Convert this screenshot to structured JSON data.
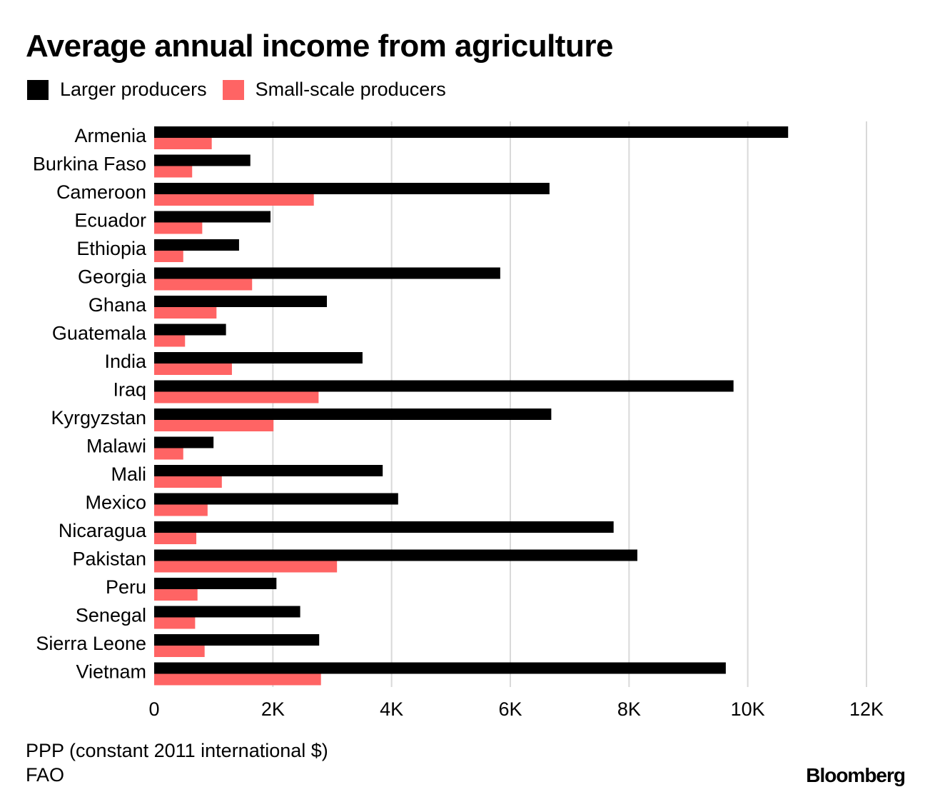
{
  "chart_data": {
    "type": "bar",
    "orientation": "horizontal",
    "title": "Average annual income from agriculture",
    "categories": [
      "Armenia",
      "Burkina Faso",
      "Cameroon",
      "Ecuador",
      "Ethiopia",
      "Georgia",
      "Ghana",
      "Guatemala",
      "India",
      "Iraq",
      "Kyrgyzstan",
      "Malawi",
      "Mali",
      "Mexico",
      "Nicaragua",
      "Pakistan",
      "Peru",
      "Senegal",
      "Sierra Leone",
      "Vietnam"
    ],
    "series": [
      {
        "name": "Larger producers",
        "color": "#000000",
        "values": [
          10680,
          1620,
          6660,
          1960,
          1430,
          5830,
          2910,
          1210,
          3510,
          9760,
          6690,
          1000,
          3850,
          4110,
          7740,
          8140,
          2060,
          2460,
          2780,
          9630
        ]
      },
      {
        "name": "Small-scale producers",
        "color": "#ff6464",
        "values": [
          970,
          640,
          2690,
          810,
          490,
          1650,
          1050,
          520,
          1310,
          2770,
          2010,
          490,
          1140,
          900,
          710,
          3080,
          730,
          690,
          850,
          2810
        ]
      }
    ],
    "xlim": [
      0,
      12000
    ],
    "xticks": [
      0,
      2000,
      4000,
      6000,
      8000,
      10000,
      12000
    ],
    "xtick_labels": [
      "0",
      "2K",
      "4K",
      "6K",
      "8K",
      "10K",
      "12K"
    ],
    "grid": "vertical",
    "legend_placement": "top-left",
    "xlabel": "PPP (constant 2011 international $)",
    "source": "FAO",
    "brand": "Bloomberg"
  }
}
